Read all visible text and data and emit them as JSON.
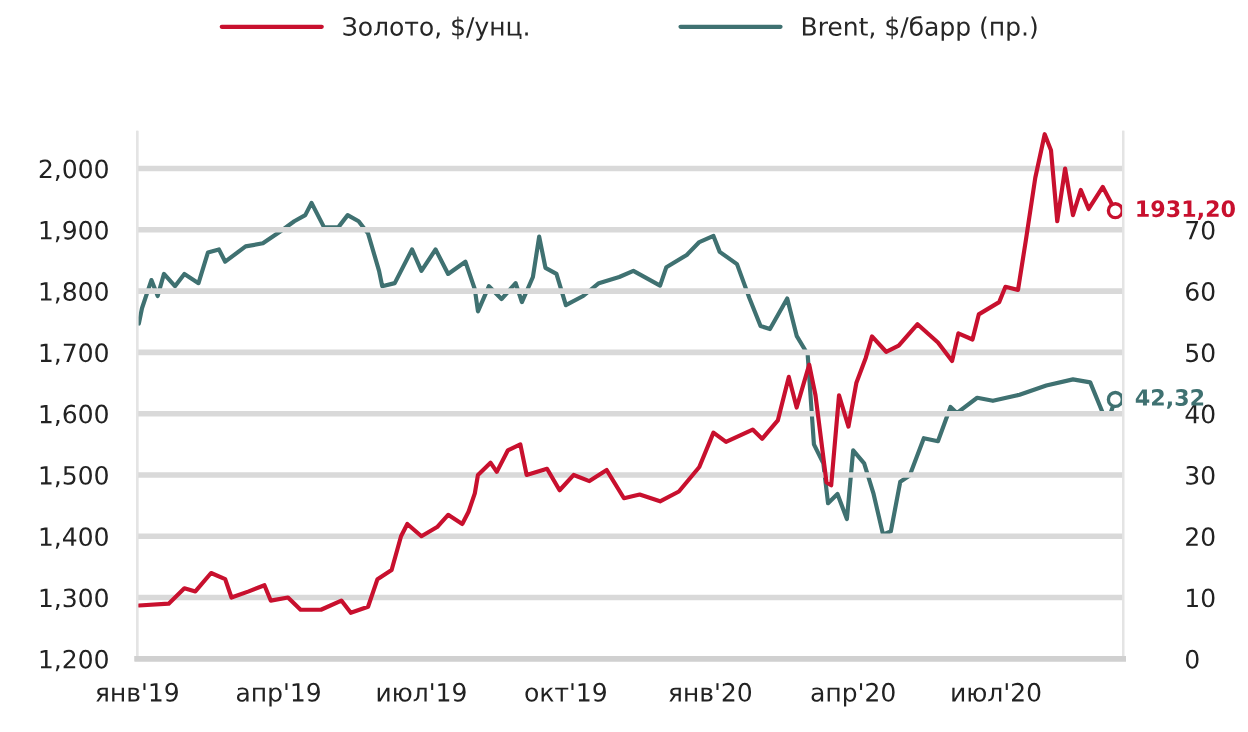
{
  "chart_data": {
    "type": "line",
    "xlim": [
      "2019-01-01",
      "2020-09-20"
    ],
    "xticks": [
      {
        "value": "2019-01-01",
        "label": "янв'19"
      },
      {
        "value": "2019-04-01",
        "label": "апр'19"
      },
      {
        "value": "2019-07-01",
        "label": "июл'19"
      },
      {
        "value": "2019-10-01",
        "label": "окт'19"
      },
      {
        "value": "2020-01-01",
        "label": "янв'20"
      },
      {
        "value": "2020-04-01",
        "label": "апр'20"
      },
      {
        "value": "2020-07-01",
        "label": "июл'20"
      }
    ],
    "ylim": [
      1200,
      2060
    ],
    "yticks": [
      {
        "value": 1200,
        "label": "1,200"
      },
      {
        "value": 1300,
        "label": "1,300"
      },
      {
        "value": 1400,
        "label": "1,400"
      },
      {
        "value": 1500,
        "label": "1,500"
      },
      {
        "value": 1600,
        "label": "1,600"
      },
      {
        "value": 1700,
        "label": "1,700"
      },
      {
        "value": 1800,
        "label": "1,800"
      },
      {
        "value": 1900,
        "label": "1,900"
      },
      {
        "value": 2000,
        "label": "2,000"
      }
    ],
    "y2lim": [
      0,
      86
    ],
    "y2ticks": [
      0,
      10,
      20,
      30,
      40,
      50,
      60,
      70
    ],
    "grid": "y",
    "legend": "top",
    "marker": "none",
    "line_style": "solid",
    "annotations": [
      "1931,20",
      "42,32"
    ],
    "series": [
      {
        "name": "Золото, $/унц.",
        "color": "#c8102e",
        "x": [
          "2019-01-02",
          "2019-01-21",
          "2019-01-31",
          "2019-02-07",
          "2019-02-17",
          "2019-02-26",
          "2019-03-02",
          "2019-03-13",
          "2019-03-23",
          "2019-03-27",
          "2019-04-07",
          "2019-04-15",
          "2019-04-28",
          "2019-05-11",
          "2019-05-17",
          "2019-05-28",
          "2019-06-03",
          "2019-06-12",
          "2019-06-18",
          "2019-06-22",
          "2019-07-01",
          "2019-07-11",
          "2019-07-18",
          "2019-07-27",
          "2019-07-31",
          "2019-08-04",
          "2019-08-06",
          "2019-08-14",
          "2019-08-18",
          "2019-08-25",
          "2019-09-02",
          "2019-09-06",
          "2019-09-19",
          "2019-09-27",
          "2019-10-06",
          "2019-10-16",
          "2019-10-27",
          "2019-11-07",
          "2019-11-17",
          "2019-11-30",
          "2019-12-12",
          "2019-12-25",
          "2020-01-03",
          "2020-01-11",
          "2020-01-28",
          "2020-02-03",
          "2020-02-13",
          "2020-02-20",
          "2020-02-25",
          "2020-03-04",
          "2020-03-08",
          "2020-03-15",
          "2020-03-18",
          "2020-03-23",
          "2020-03-29",
          "2020-04-03",
          "2020-04-09",
          "2020-04-13",
          "2020-04-22",
          "2020-04-30",
          "2020-05-12",
          "2020-05-25",
          "2020-06-03",
          "2020-06-07",
          "2020-06-16",
          "2020-06-20",
          "2020-07-03",
          "2020-07-07",
          "2020-07-15",
          "2020-07-20",
          "2020-07-26",
          "2020-08-01",
          "2020-08-05",
          "2020-08-09",
          "2020-08-14",
          "2020-08-19",
          "2020-08-24",
          "2020-08-29",
          "2020-09-07",
          "2020-09-15"
        ],
        "values": [
          1287,
          1290,
          1315,
          1310,
          1340,
          1330,
          1300,
          1310,
          1320,
          1295,
          1300,
          1280,
          1280,
          1295,
          1275,
          1285,
          1330,
          1345,
          1400,
          1420,
          1400,
          1415,
          1435,
          1420,
          1440,
          1470,
          1500,
          1520,
          1505,
          1540,
          1550,
          1500,
          1510,
          1475,
          1500,
          1490,
          1508,
          1462,
          1468,
          1457,
          1473,
          1513,
          1569,
          1554,
          1574,
          1559,
          1589,
          1660,
          1610,
          1680,
          1630,
          1488,
          1483,
          1630,
          1579,
          1650,
          1691,
          1726,
          1701,
          1711,
          1746,
          1716,
          1686,
          1731,
          1721,
          1762,
          1782,
          1807,
          1802,
          1883,
          1985,
          2056,
          2030,
          1914,
          2000,
          1924,
          1965,
          1934,
          1970,
          1931.2
        ]
      },
      {
        "name": "Brent, $/барр (пр.)",
        "color": "#3f7171",
        "axis": "y2",
        "x": [
          "2019-01-02",
          "2019-01-04",
          "2019-01-10",
          "2019-01-14",
          "2019-01-18",
          "2019-01-25",
          "2019-01-31",
          "2019-02-09",
          "2019-02-15",
          "2019-02-22",
          "2019-02-26",
          "2019-03-11",
          "2019-03-22",
          "2019-04-03",
          "2019-04-11",
          "2019-04-18",
          "2019-04-22",
          "2019-04-30",
          "2019-05-09",
          "2019-05-15",
          "2019-05-22",
          "2019-05-28",
          "2019-06-04",
          "2019-06-06",
          "2019-06-14",
          "2019-06-25",
          "2019-07-01",
          "2019-07-10",
          "2019-07-18",
          "2019-07-29",
          "2019-08-04",
          "2019-08-06",
          "2019-08-13",
          "2019-08-21",
          "2019-08-30",
          "2019-09-03",
          "2019-09-10",
          "2019-09-14",
          "2019-09-18",
          "2019-09-25",
          "2019-10-01",
          "2019-10-12",
          "2019-10-22",
          "2019-11-04",
          "2019-11-13",
          "2019-11-30",
          "2019-12-04",
          "2019-12-17",
          "2019-12-25",
          "2020-01-03",
          "2020-01-07",
          "2020-01-18",
          "2020-01-26",
          "2020-02-02",
          "2020-02-08",
          "2020-02-19",
          "2020-02-25",
          "2020-03-03",
          "2020-03-07",
          "2020-03-13",
          "2020-03-16",
          "2020-03-22",
          "2020-03-28",
          "2020-04-01",
          "2020-04-08",
          "2020-04-14",
          "2020-04-20",
          "2020-04-25",
          "2020-05-01",
          "2020-05-07",
          "2020-05-16",
          "2020-05-25",
          "2020-06-02",
          "2020-06-06",
          "2020-06-19",
          "2020-06-29",
          "2020-07-16",
          "2020-08-02",
          "2020-08-19",
          "2020-08-30",
          "2020-09-07",
          "2020-09-12",
          "2020-09-15"
        ],
        "values": [
          54.7,
          57.2,
          61.8,
          59.2,
          62.8,
          60.8,
          62.8,
          61.3,
          66.3,
          66.8,
          64.8,
          67.3,
          67.8,
          69.9,
          71.4,
          72.4,
          74.4,
          70.4,
          70.4,
          72.4,
          71.4,
          69.4,
          63.3,
          60.8,
          61.3,
          66.8,
          63.3,
          66.8,
          62.8,
          64.8,
          60.3,
          56.7,
          60.8,
          58.7,
          61.3,
          58.2,
          62.3,
          68.9,
          63.8,
          62.8,
          57.7,
          59.2,
          61.3,
          62.3,
          63.3,
          60.9,
          63.9,
          65.9,
          68.0,
          69.0,
          66.4,
          64.4,
          58.8,
          54.3,
          53.8,
          58.8,
          52.7,
          49.7,
          35.0,
          31.9,
          25.4,
          26.9,
          22.8,
          34.0,
          31.9,
          26.9,
          20.3,
          20.8,
          28.9,
          29.9,
          36.0,
          35.5,
          41.1,
          40.1,
          42.6,
          42.1,
          43.1,
          44.6,
          45.6,
          45.1,
          40.1,
          40.1,
          42.32
        ]
      }
    ]
  }
}
